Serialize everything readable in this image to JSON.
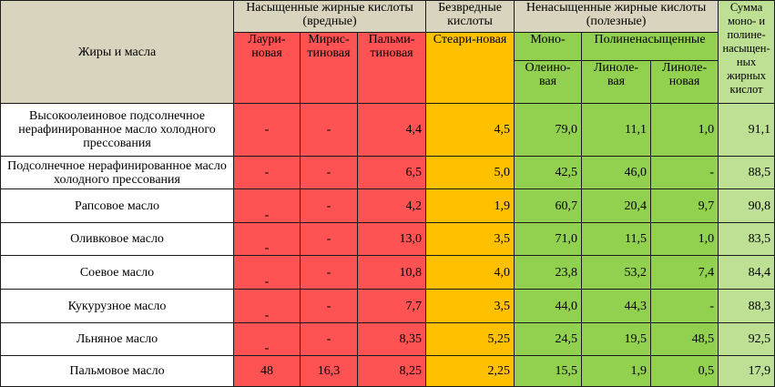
{
  "header": {
    "fats": "Жиры и масла",
    "saturated": "Насыщенные жирные кислоты (вредные)",
    "harmless": "Безвредные кислоты",
    "unsaturated": "Ненасыщенные жирные кислоты (полезные)",
    "sum": "Сумма моно- и полине-насыщен-ных жирных кислот",
    "lauric": "Лаури-новая",
    "myristic": "Мирис-тиновая",
    "palmitic": "Пальми-тиновая",
    "stearic": "Стеари-новая",
    "mono": "Моно-",
    "poly": "Полиненасыщенные",
    "oleic": "Олеино-вая",
    "linoleic": "Линоле-вая",
    "linolenic": "Линоле-новая"
  },
  "rows": [
    {
      "name": "Высокоолеиновое подсолнечное нерафинированное масло холодного прессования",
      "lauric": "-",
      "myristic": "-",
      "palmitic": "4,4",
      "stearic": "4,5",
      "oleic": "79,0",
      "linoleic": "11,1",
      "linolenic": "1,0",
      "sum": "91,1"
    },
    {
      "name": "Подсолнечное нерафинированное масло холодного прессования",
      "lauric": "-",
      "myristic": "-",
      "palmitic": "6,5",
      "stearic": "5,0",
      "oleic": "42,5",
      "linoleic": "46,0",
      "linolenic": "-",
      "sum": "88,5"
    },
    {
      "name": "Рапсовое масло",
      "lauric": "-",
      "myristic": "-",
      "palmitic": "4,2",
      "stearic": "1,9",
      "oleic": "60,7",
      "linoleic": "20,4",
      "linolenic": "9,7",
      "sum": "90,8"
    },
    {
      "name": "Оливковое масло",
      "lauric": "-",
      "myristic": "-",
      "palmitic": "13,0",
      "stearic": "3,5",
      "oleic": "71,0",
      "linoleic": "11,5",
      "linolenic": "1,0",
      "sum": "83,5"
    },
    {
      "name": "Соевое масло",
      "lauric": "-",
      "myristic": "-",
      "palmitic": "10,8",
      "stearic": "4,0",
      "oleic": "23,8",
      "linoleic": "53,2",
      "linolenic": "7,4",
      "sum": "84,4"
    },
    {
      "name": "Кукурузное масло",
      "lauric": "-",
      "myristic": "-",
      "palmitic": "7,7",
      "stearic": "3,5",
      "oleic": "44,0",
      "linoleic": "44,3",
      "linolenic": "-",
      "sum": "88,3"
    },
    {
      "name": "Льняное масло",
      "lauric": "-",
      "myristic": "-",
      "palmitic": "8,35",
      "stearic": "5,25",
      "oleic": "24,5",
      "linoleic": "19,5",
      "linolenic": "48,5",
      "sum": "92,5"
    },
    {
      "name": "Пальмовое масло",
      "lauric": "48",
      "myristic": "16,3",
      "palmitic": "8,25",
      "stearic": "2,25",
      "oleic": "15,5",
      "linoleic": "1,9",
      "linolenic": "0,5",
      "sum": "17,9"
    }
  ]
}
